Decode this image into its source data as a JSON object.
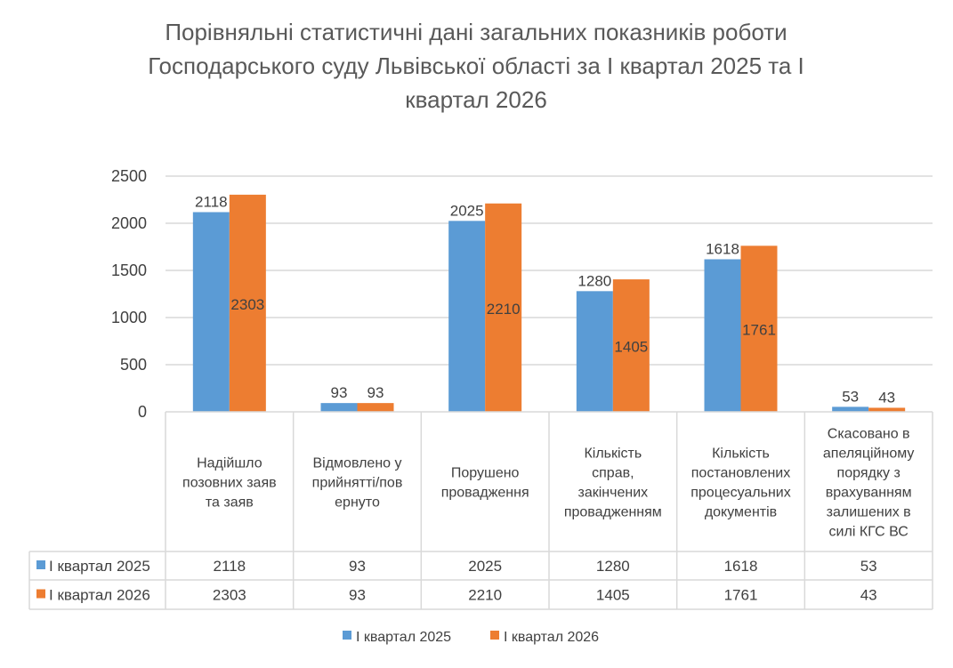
{
  "chart_data": {
    "type": "bar",
    "title_lines": [
      "Порівняльні статистичні дані загальних показників роботи",
      "Господарського суду Львівської області за I  квартал 2025 та  I",
      "квартал 2026"
    ],
    "categories": [
      [
        "Надійшло",
        "позовних заяв",
        "та заяв"
      ],
      [
        "Відмовлено у",
        "прийнятті/пов",
        "ернуто"
      ],
      [
        "Порушено",
        "провадження"
      ],
      [
        "Кількість",
        "справ,",
        "закінчених",
        "провадженням"
      ],
      [
        "Кількість",
        "постановлених",
        "процесуальних",
        "документів"
      ],
      [
        "Скасовано в",
        "апеляційному",
        "порядку з",
        "врахуванням",
        "залишених в",
        "силі КГС ВС"
      ]
    ],
    "series": [
      {
        "name": "I квартал 2025",
        "color": "#5B9BD5",
        "values": [
          2118,
          93,
          2025,
          1280,
          1618,
          53
        ]
      },
      {
        "name": "I квартал 2026",
        "color": "#ED7D31",
        "values": [
          2303,
          93,
          2210,
          1405,
          1761,
          43
        ]
      }
    ],
    "yticks": [
      "0",
      "500",
      "1000",
      "1500",
      "2000",
      "2500"
    ],
    "ylim": [
      0,
      2500
    ],
    "grid": true,
    "legend": "bottom",
    "data_table": true
  }
}
